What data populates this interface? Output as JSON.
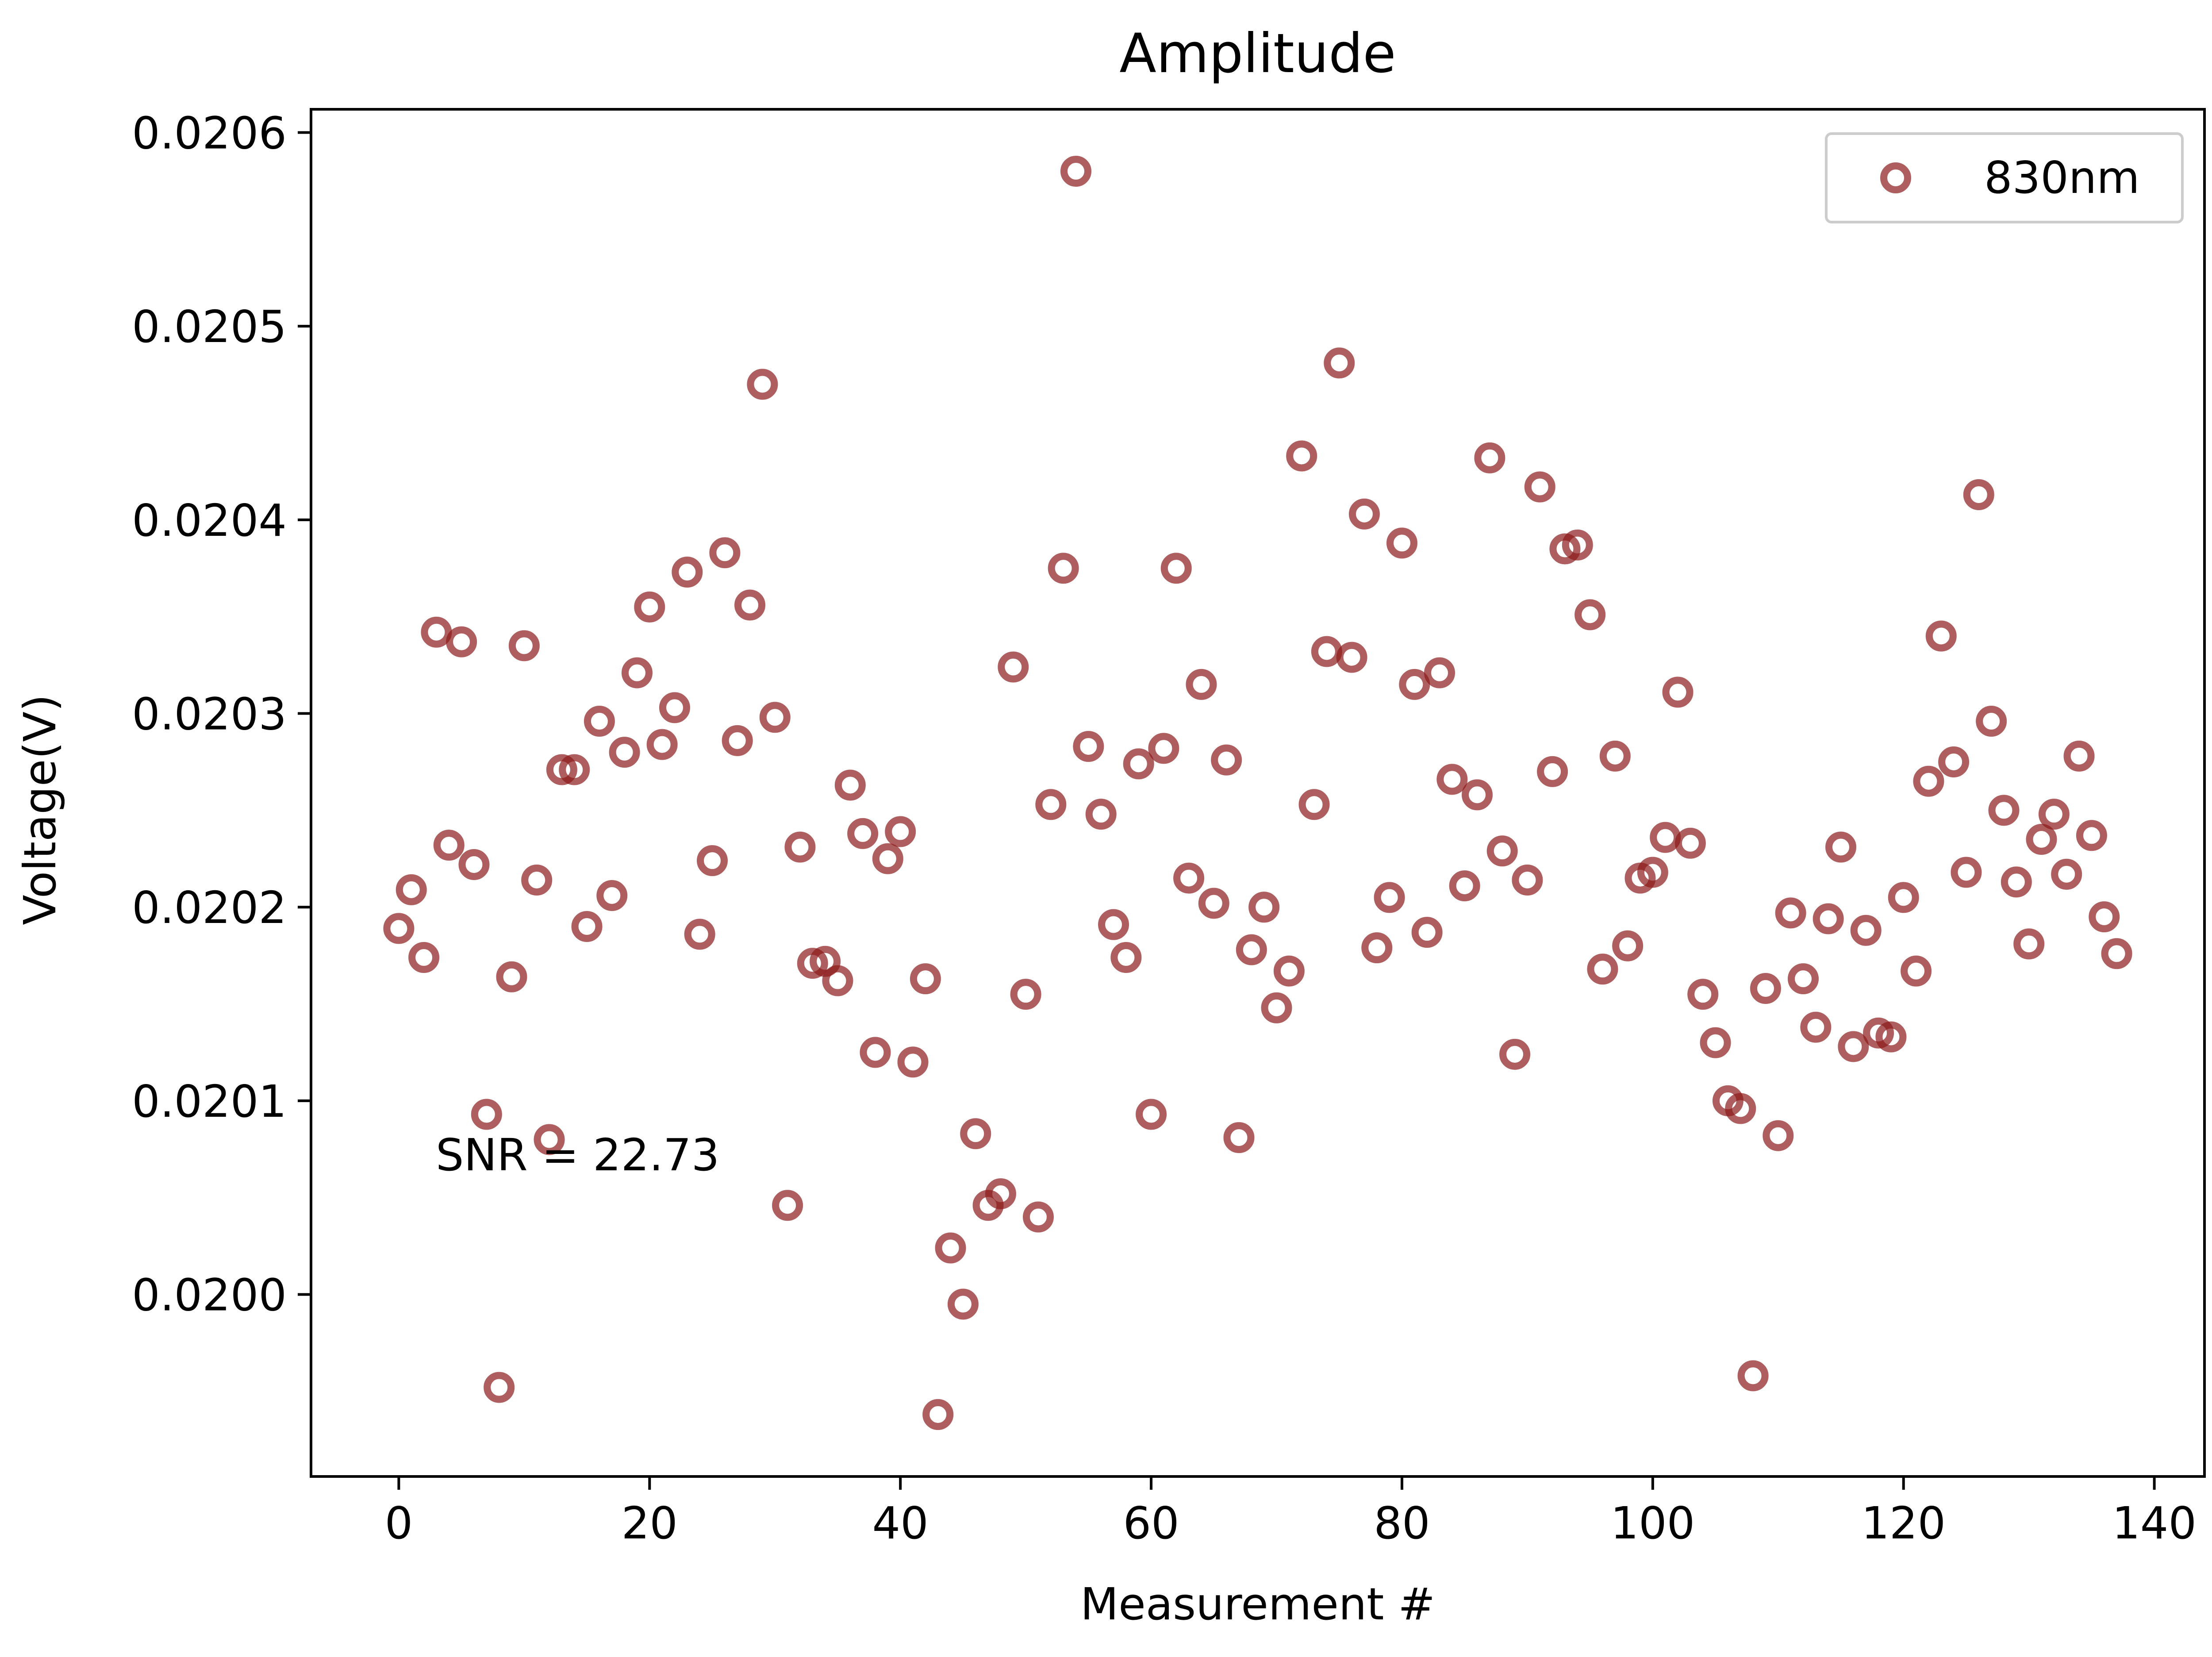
{
  "chart_data": {
    "type": "scatter",
    "title": "Amplitude",
    "xlabel": "Measurement #",
    "ylabel": "Voltage(V)",
    "xlim": [
      -7,
      144
    ],
    "ylim": [
      0.019906,
      0.020612
    ],
    "x_ticks": [
      0,
      20,
      40,
      60,
      80,
      100,
      120,
      140
    ],
    "x_tick_labels": [
      "0",
      "20",
      "40",
      "60",
      "80",
      "100",
      "120",
      "140"
    ],
    "y_ticks": [
      0.02,
      0.0201,
      0.0202,
      0.0203,
      0.0204,
      0.0205,
      0.0206
    ],
    "y_tick_labels": [
      "0.0200",
      "0.0201",
      "0.0202",
      "0.0203",
      "0.0204",
      "0.0205",
      "0.0206"
    ],
    "grid": false,
    "legend_position": "top-right",
    "annotation": "SNR = 22.73",
    "colors": {
      "marker": "#8b1a1a"
    },
    "series": [
      {
        "name": "830nm",
        "x": [
          0,
          1,
          2,
          3,
          4,
          5,
          6,
          7,
          8,
          9,
          10,
          11,
          12,
          13,
          14,
          15,
          16,
          17,
          18,
          19,
          20,
          21,
          22,
          23,
          24,
          25,
          26,
          27,
          28,
          29,
          30,
          31,
          32,
          33,
          34,
          35,
          36,
          37,
          38,
          39,
          40,
          41,
          42,
          43,
          44,
          45,
          46,
          47,
          48,
          49,
          50,
          51,
          52,
          53,
          54,
          55,
          56,
          57,
          58,
          59,
          60,
          61,
          62,
          63,
          64,
          65,
          66,
          67,
          68,
          69,
          70,
          71,
          72,
          73,
          74,
          75,
          76,
          77,
          78,
          79,
          80,
          81,
          82,
          83,
          84,
          85,
          86,
          87,
          88,
          89,
          90,
          91,
          92,
          93,
          94,
          95,
          96,
          97,
          98,
          99,
          100,
          101,
          102,
          103,
          104,
          105,
          106,
          107,
          108,
          109,
          110,
          111,
          112,
          113,
          114,
          115,
          116,
          117,
          118,
          119,
          120,
          121,
          122,
          123,
          124,
          125,
          126,
          127,
          128,
          129,
          130,
          131,
          132,
          133,
          134,
          135,
          136,
          137
        ],
        "y": [
          0.020189,
          0.020209,
          0.020174,
          0.020342,
          0.020232,
          0.020337,
          0.020222,
          0.020093,
          0.019952,
          0.020164,
          0.020335,
          0.020214,
          0.02008,
          0.020271,
          0.020271,
          0.02019,
          0.020296,
          0.020206,
          0.02028,
          0.020321,
          0.020355,
          0.020284,
          0.020303,
          0.020373,
          0.020186,
          0.020224,
          0.020383,
          0.020286,
          0.020356,
          0.02047,
          0.020298,
          0.020046,
          0.020231,
          0.020171,
          0.020172,
          0.020162,
          0.020263,
          0.020238,
          0.020125,
          0.020225,
          0.020239,
          0.02012,
          0.020163,
          0.019938,
          0.020024,
          0.019995,
          0.020083,
          0.020046,
          0.020052,
          0.020324,
          0.020155,
          0.02004,
          0.020253,
          0.020375,
          0.02058,
          0.020283,
          0.020248,
          0.020191,
          0.020174,
          0.020274,
          0.020093,
          0.020282,
          0.020375,
          0.020215,
          0.020315,
          0.020202,
          0.020276,
          0.020081,
          0.020178,
          0.0202,
          0.020148,
          0.020167,
          0.020433,
          0.020253,
          0.020332,
          0.020481,
          0.020329,
          0.020403,
          0.020179,
          0.020205,
          0.020388,
          0.020315,
          0.020187,
          0.020321,
          0.020266,
          0.020211,
          0.020258,
          0.020432,
          0.020229,
          0.020124,
          0.020214,
          0.020417,
          0.02027,
          0.020385,
          0.020387,
          0.020351,
          0.020168,
          0.020278,
          0.02018,
          0.020215,
          0.020218,
          0.020236,
          0.020311,
          0.020233,
          0.020155,
          0.02013,
          0.0201,
          0.020096,
          0.019958,
          0.020158,
          0.020082,
          0.020197,
          0.020163,
          0.020138,
          0.020194,
          0.020231,
          0.020128,
          0.020188,
          0.020135,
          0.020133,
          0.020205,
          0.020167,
          0.020265,
          0.02034,
          0.020275,
          0.020218,
          0.020413,
          0.020296,
          0.02025,
          0.020213,
          0.020181,
          0.020235,
          0.020248,
          0.020217,
          0.020278,
          0.020237,
          0.020195,
          0.020176
        ]
      }
    ]
  }
}
